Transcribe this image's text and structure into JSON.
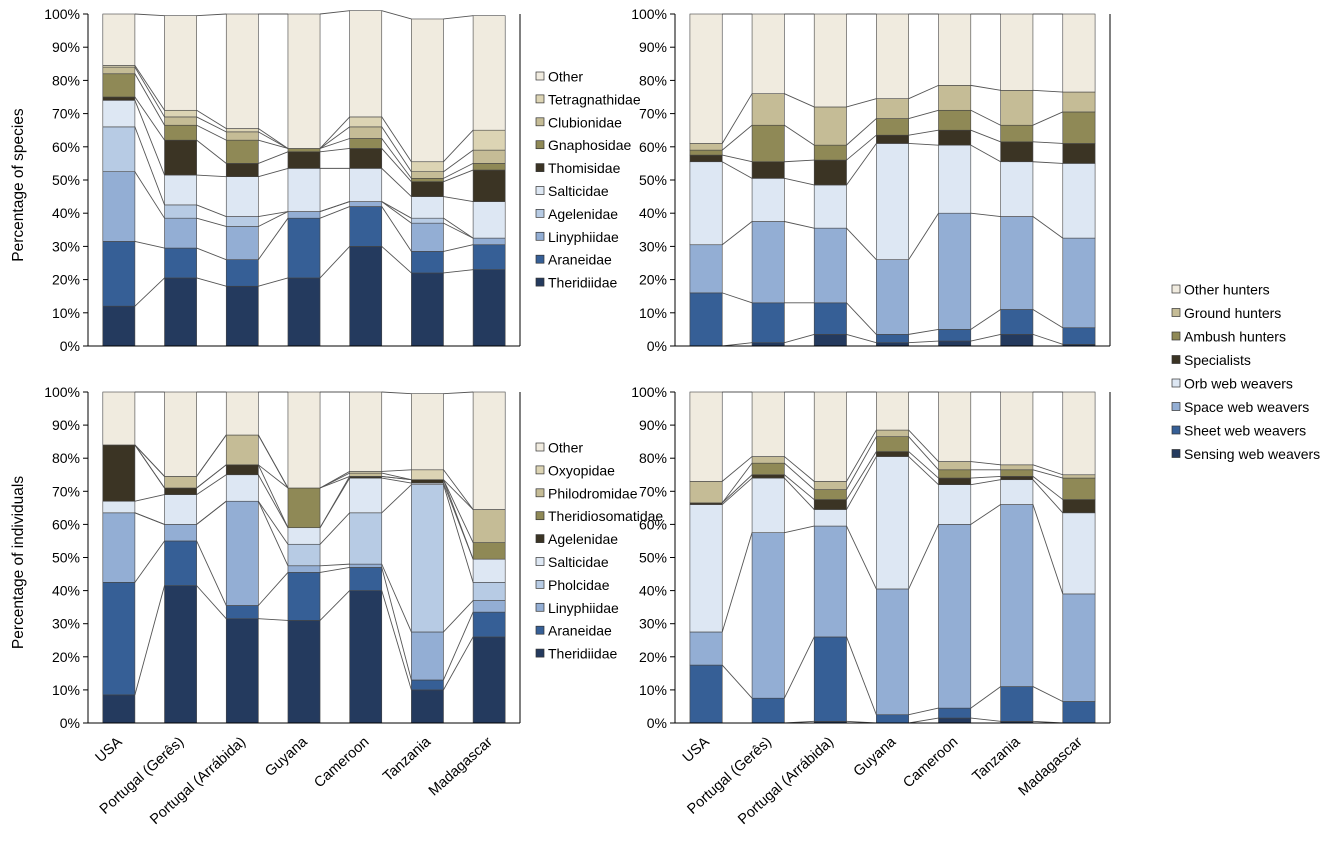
{
  "y_tick_labels": [
    "0%",
    "10%",
    "20%",
    "30%",
    "40%",
    "50%",
    "60%",
    "70%",
    "80%",
    "90%",
    "100%"
  ],
  "chart_data": [
    {
      "id": "species-by-family",
      "type": "bar",
      "stacked": true,
      "ylabel": "Percentage of species",
      "ylim": [
        0,
        100
      ],
      "categories": [
        "USA",
        "Portugal (Gerês)",
        "Portugal (Arrábida)",
        "Guyana",
        "Cameroon",
        "Tanzania",
        "Madagascar"
      ],
      "show_x_labels": false,
      "series": [
        {
          "name": "Theridiidae",
          "color": "#243a5e",
          "values": [
            12,
            20.5,
            18,
            20.5,
            30,
            22,
            23
          ]
        },
        {
          "name": "Araneidae",
          "color": "#365f96",
          "values": [
            19.5,
            9,
            8,
            18,
            12,
            6.5,
            7.5
          ]
        },
        {
          "name": "Linyphiidae",
          "color": "#93aed4",
          "values": [
            21,
            9,
            10,
            2,
            1.5,
            8.5,
            2
          ]
        },
        {
          "name": "Agelenidae",
          "color": "#b7cbe4",
          "values": [
            13.5,
            4,
            3,
            0,
            0,
            1.5,
            0
          ]
        },
        {
          "name": "Salticidae",
          "color": "#dde7f3",
          "values": [
            8,
            9,
            12,
            13,
            10,
            6.5,
            11
          ]
        },
        {
          "name": "Thomisidae",
          "color": "#3b3424",
          "values": [
            1,
            10.5,
            4,
            5,
            6,
            4.5,
            9.5
          ]
        },
        {
          "name": "Gnaphosidae",
          "color": "#8f8956",
          "values": [
            7,
            4.5,
            7,
            1,
            3,
            1,
            2
          ]
        },
        {
          "name": "Clubionidae",
          "color": "#c5bc96",
          "values": [
            2,
            2.5,
            2.5,
            0,
            3.5,
            2,
            4
          ]
        },
        {
          "name": "Tetragnathidae",
          "color": "#dcd4b4",
          "values": [
            0.5,
            2,
            1,
            0,
            3,
            3,
            6
          ]
        },
        {
          "name": "Other",
          "color": "#f0ebdf",
          "values": [
            15.5,
            28.5,
            34.5,
            40.5,
            32,
            43,
            34.5
          ]
        }
      ]
    },
    {
      "id": "species-by-guild",
      "type": "bar",
      "stacked": true,
      "ylim": [
        0,
        100
      ],
      "categories": [
        "USA",
        "Portugal (Gerês)",
        "Portugal (Arrábida)",
        "Guyana",
        "Cameroon",
        "Tanzania",
        "Madagascar"
      ],
      "show_x_labels": false,
      "series": [
        {
          "name": "Sensing web weavers",
          "color": "#243a5e",
          "values": [
            0,
            1,
            3.5,
            1,
            1.5,
            3.5,
            0.5
          ]
        },
        {
          "name": "Sheet web weavers",
          "color": "#365f96",
          "values": [
            16,
            12,
            9.5,
            2.5,
            3.5,
            7.5,
            5
          ]
        },
        {
          "name": "Space web weavers",
          "color": "#93aed4",
          "values": [
            14.5,
            24.5,
            22.5,
            22.5,
            35,
            28,
            27
          ]
        },
        {
          "name": "Orb web weavers",
          "color": "#dde7f3",
          "values": [
            25,
            13,
            13,
            35,
            20.5,
            16.5,
            22.5
          ]
        },
        {
          "name": "Specialists",
          "color": "#3b3424",
          "values": [
            2,
            5,
            7.5,
            2.5,
            4.5,
            6,
            6
          ]
        },
        {
          "name": "Ambush hunters",
          "color": "#8f8956",
          "values": [
            1.5,
            11,
            4.5,
            5,
            6,
            5,
            9.5
          ]
        },
        {
          "name": "Ground hunters",
          "color": "#c5bc96",
          "values": [
            2,
            9.5,
            11.5,
            6,
            7.5,
            10.5,
            6
          ]
        },
        {
          "name": "Other hunters",
          "color": "#f0ebdf",
          "values": [
            39,
            24,
            28,
            25.5,
            21.5,
            23,
            23.5
          ]
        }
      ]
    },
    {
      "id": "individuals-by-family",
      "type": "bar",
      "stacked": true,
      "ylabel": "Percentage of individuals",
      "ylim": [
        0,
        100
      ],
      "categories": [
        "USA",
        "Portugal (Gerês)",
        "Portugal (Arrábida)",
        "Guyana",
        "Cameroon",
        "Tanzania",
        "Madagascar"
      ],
      "show_x_labels": true,
      "series": [
        {
          "name": "Theridiidae",
          "color": "#243a5e",
          "values": [
            8.5,
            41.5,
            31.5,
            31,
            40,
            10,
            26
          ]
        },
        {
          "name": "Araneidae",
          "color": "#365f96",
          "values": [
            34,
            13.5,
            4,
            14.5,
            7,
            3,
            7.5
          ]
        },
        {
          "name": "Linyphiidae",
          "color": "#93aed4",
          "values": [
            21,
            5,
            31.5,
            2,
            1,
            14.5,
            3.5
          ]
        },
        {
          "name": "Pholcidae",
          "color": "#b7cbe4",
          "values": [
            0,
            0,
            0,
            6.5,
            15.5,
            44.5,
            5.5
          ]
        },
        {
          "name": "Salticidae",
          "color": "#dde7f3",
          "values": [
            3.5,
            9,
            8,
            5,
            10.5,
            0.5,
            7
          ]
        },
        {
          "name": "Agelenidae",
          "color": "#3b3424",
          "values": [
            17,
            2,
            3,
            0,
            0.5,
            1,
            0
          ]
        },
        {
          "name": "Theridiosomatidae",
          "color": "#8f8956",
          "values": [
            0,
            0,
            0,
            12,
            0,
            0,
            5
          ]
        },
        {
          "name": "Philodromidae",
          "color": "#c5bc96",
          "values": [
            0,
            3.5,
            9,
            0,
            1,
            0,
            10
          ]
        },
        {
          "name": "Oxyopidae",
          "color": "#dcd4b4",
          "values": [
            0,
            0,
            0,
            0,
            0.5,
            3,
            0
          ]
        },
        {
          "name": "Other",
          "color": "#f0ebdf",
          "values": [
            16,
            25.5,
            13,
            29,
            24,
            23,
            35.5
          ]
        }
      ]
    },
    {
      "id": "individuals-by-guild",
      "type": "bar",
      "stacked": true,
      "ylim": [
        0,
        100
      ],
      "categories": [
        "USA",
        "Portugal (Gerês)",
        "Portugal (Arrábida)",
        "Guyana",
        "Cameroon",
        "Tanzania",
        "Madagascar"
      ],
      "show_x_labels": true,
      "series": [
        {
          "name": "Sensing web weavers",
          "color": "#243a5e",
          "values": [
            0,
            0,
            0.5,
            0,
            1.5,
            0.5,
            0
          ]
        },
        {
          "name": "Sheet web weavers",
          "color": "#365f96",
          "values": [
            17.5,
            7.5,
            25.5,
            2.5,
            3,
            10.5,
            6.5
          ]
        },
        {
          "name": "Space web weavers",
          "color": "#93aed4",
          "values": [
            10,
            50,
            33.5,
            38,
            55.5,
            55,
            32.5
          ]
        },
        {
          "name": "Orb web weavers",
          "color": "#dde7f3",
          "values": [
            38.5,
            16.5,
            5,
            40,
            12,
            7.5,
            24.5
          ]
        },
        {
          "name": "Specialists",
          "color": "#3b3424",
          "values": [
            0.5,
            1,
            3,
            1.5,
            2,
            1,
            4
          ]
        },
        {
          "name": "Ambush hunters",
          "color": "#8f8956",
          "values": [
            0,
            3.5,
            3,
            4.5,
            2.5,
            2,
            6.5
          ]
        },
        {
          "name": "Ground hunters",
          "color": "#c5bc96",
          "values": [
            6.5,
            2,
            2.5,
            2,
            2.5,
            1.5,
            1
          ]
        },
        {
          "name": "Other hunters",
          "color": "#f0ebdf",
          "values": [
            27,
            19.5,
            27,
            11.5,
            21,
            22,
            25
          ]
        }
      ]
    }
  ]
}
